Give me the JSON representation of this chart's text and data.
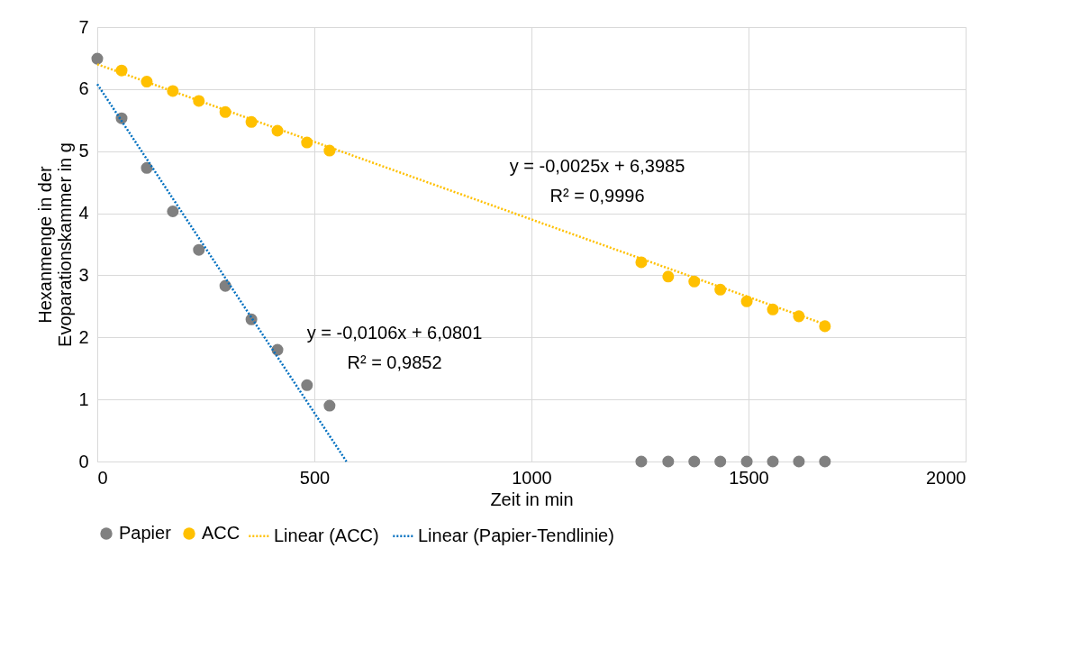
{
  "chart_data": {
    "type": "scatter",
    "xlabel": "Zeit in min",
    "ylabel": "Hexanmenge in der Evoparationskammer in g",
    "xlim": [
      0,
      2000
    ],
    "xticks": [
      0,
      500,
      1000,
      1500,
      2000
    ],
    "ylim": [
      0,
      7
    ],
    "yticks": [
      0,
      1,
      2,
      3,
      4,
      5,
      6,
      7
    ],
    "grid": true,
    "legend": "bottom",
    "series": [
      {
        "name": "Papier",
        "color": "#808080",
        "marker": "circle",
        "x": [
          0,
          56,
          114,
          174,
          234,
          295,
          355,
          415,
          483,
          535,
          1253,
          1315,
          1375,
          1435,
          1496,
          1556,
          1616,
          1676
        ],
        "values": [
          6.49,
          5.53,
          4.73,
          4.03,
          3.41,
          2.83,
          2.29,
          1.8,
          1.23,
          0.9,
          0,
          0,
          0,
          0,
          0,
          0,
          0,
          0
        ]
      },
      {
        "name": "ACC",
        "color": "#ffc000",
        "marker": "circle",
        "x": [
          56,
          114,
          174,
          234,
          295,
          355,
          415,
          483,
          535,
          1253,
          1315,
          1375,
          1435,
          1496,
          1556,
          1616,
          1676
        ],
        "values": [
          6.3,
          6.12,
          5.97,
          5.81,
          5.63,
          5.47,
          5.33,
          5.14,
          5.01,
          3.21,
          2.98,
          2.9,
          2.77,
          2.58,
          2.45,
          2.34,
          2.18
        ]
      },
      {
        "name": "Linear (ACC)",
        "color": "#ffc000",
        "type": "line",
        "line_style": "dotted",
        "x": [
          0,
          1676
        ],
        "values": [
          6.4,
          2.21
        ]
      },
      {
        "name": "Linear (Papier-Tendlinie)",
        "color": "#0070c0",
        "type": "line",
        "line_style": "dotted",
        "x": [
          0,
          574
        ],
        "values": [
          6.08,
          0.0
        ]
      }
    ],
    "annotations": [
      "y = -0,0025x + 6,3985",
      "R² = 0,9996",
      "y = -0,0106x + 6,0801",
      "R² = 0,9852"
    ]
  }
}
